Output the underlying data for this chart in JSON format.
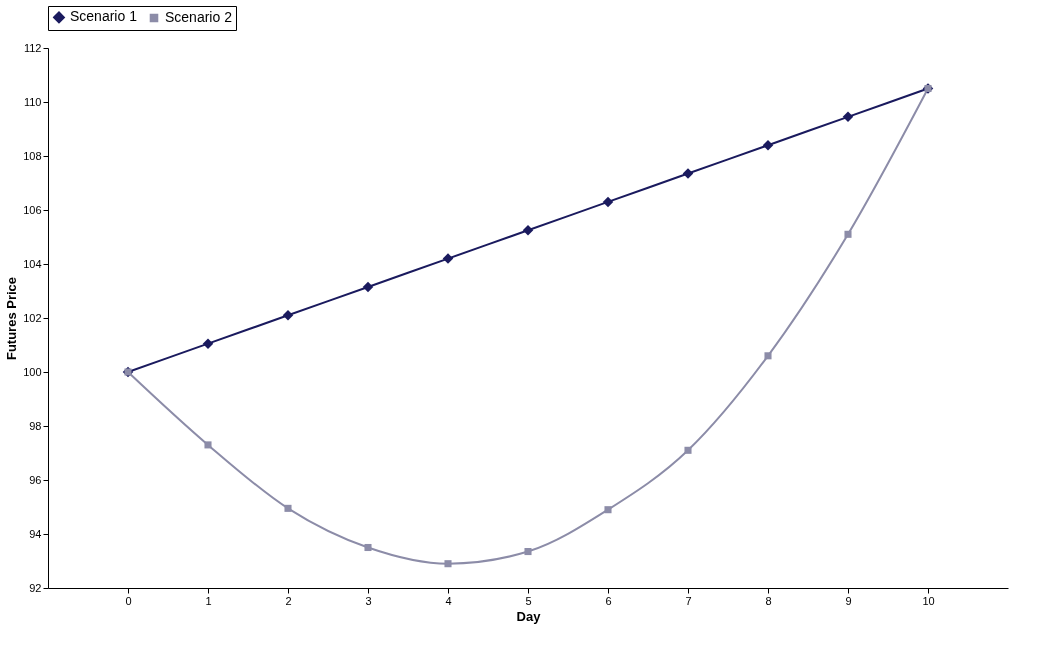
{
  "chart_data": {
    "type": "line",
    "xlabel": "Day",
    "ylabel": "Futures Price",
    "categories": [
      "0",
      "1",
      "2",
      "3",
      "4",
      "5",
      "6",
      "7",
      "8",
      "9",
      "10"
    ],
    "series": [
      {
        "name": "Scenario 1",
        "color": "#1a1a5e",
        "marker": "diamond",
        "values": [
          100,
          101.05,
          102.1,
          103.15,
          104.2,
          105.25,
          106.3,
          107.35,
          108.4,
          109.45,
          110.5
        ]
      },
      {
        "name": "Scenario 2",
        "color": "#8c8ca8",
        "marker": "square",
        "values": [
          100,
          97.3,
          94.95,
          93.5,
          92.9,
          93.35,
          94.9,
          97.1,
          100.6,
          105.1,
          110.5
        ]
      }
    ],
    "ylim": [
      92,
      112
    ],
    "yticks": [
      92,
      94,
      96,
      98,
      100,
      102,
      104,
      106,
      108,
      110,
      112
    ],
    "grid": false,
    "legend": "top"
  }
}
